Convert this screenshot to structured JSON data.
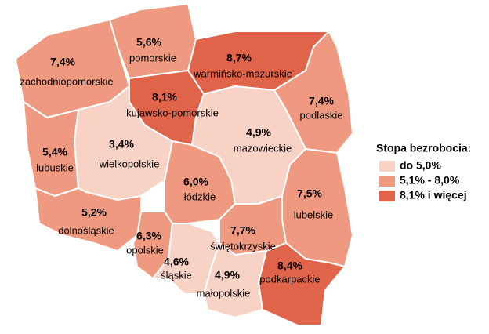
{
  "chart_data": {
    "type": "choropleth",
    "categories": [
      "zachodniopomorskie",
      "pomorskie",
      "warmińsko-mazurskie",
      "podlaskie",
      "kujawsko-pomorskie",
      "mazowieckie",
      "lubuskie",
      "wielkopolskie",
      "łódzkie",
      "lubelskie",
      "dolnośląskie",
      "opolskie",
      "świętokrzyskie",
      "śląskie",
      "małopolskie",
      "podkarpackie"
    ],
    "values": [
      7.4,
      5.6,
      8.7,
      7.4,
      8.1,
      4.9,
      5.4,
      3.4,
      6.0,
      7.5,
      5.2,
      6.3,
      7.7,
      4.6,
      4.9,
      8.4
    ],
    "value_labels": [
      "7,4%",
      "5,6%",
      "8,7%",
      "7,4%",
      "8,1%",
      "4,9%",
      "5,4%",
      "3,4%",
      "6,0%",
      "7,5%",
      "5,2%",
      "6,3%",
      "7,7%",
      "4,6%",
      "4,9%",
      "8,4%"
    ],
    "colors": [
      "#ef9a80",
      "#ef9a80",
      "#e0644a",
      "#ef9a80",
      "#e0644a",
      "#f9d2c6",
      "#ef9a80",
      "#f9d2c6",
      "#ef9a80",
      "#ef9a80",
      "#ef9a80",
      "#ef9a80",
      "#ef9a80",
      "#f9d2c6",
      "#f9d2c6",
      "#e0644a"
    ],
    "legend": {
      "title": "Stopa bezrobocia:",
      "items": [
        {
          "label": "do 5,0%",
          "color": "#f9d2c6"
        },
        {
          "label": "5,1% - 8,0%",
          "color": "#ef9a80"
        },
        {
          "label": "8,1% i więcej",
          "color": "#e0644a"
        }
      ]
    }
  }
}
